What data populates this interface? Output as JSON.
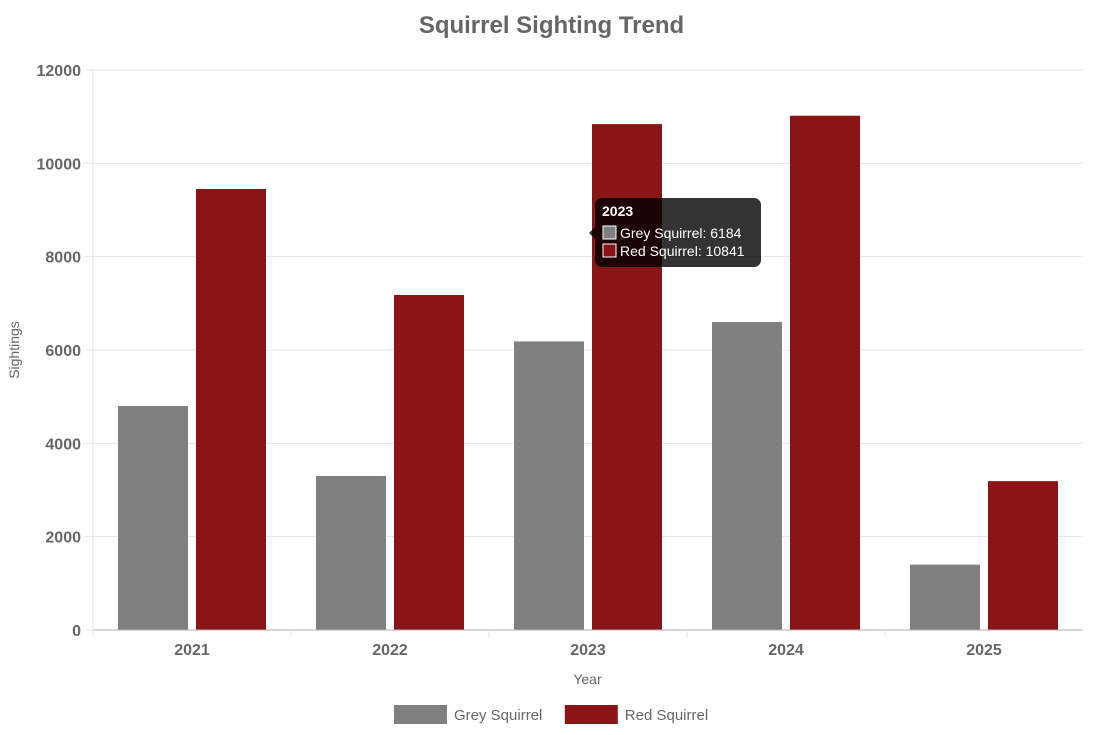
{
  "chart_data": {
    "type": "bar",
    "title": "Squirrel Sighting Trend",
    "xlabel": "Year",
    "ylabel": "Sightings",
    "categories": [
      "2021",
      "2022",
      "2023",
      "2024",
      "2025"
    ],
    "series": [
      {
        "name": "Grey Squirrel",
        "color": "#808080",
        "values": [
          4800,
          3300,
          6184,
          6600,
          1400
        ]
      },
      {
        "name": "Red Squirrel",
        "color": "#8b1416",
        "values": [
          9450,
          7180,
          10841,
          11020,
          3190
        ]
      }
    ],
    "ylim": [
      0,
      12000
    ],
    "yticks": [
      "0",
      "2000",
      "4000",
      "6000",
      "8000",
      "10000",
      "12000"
    ],
    "grid": true,
    "legend_position": "bottom",
    "tooltip": {
      "category": "2023",
      "lines": [
        "Grey Squirrel: 6184",
        "Red Squirrel: 10841"
      ]
    }
  }
}
